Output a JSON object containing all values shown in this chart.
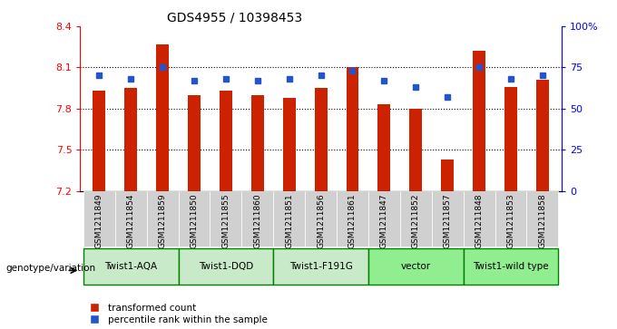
{
  "title": "GDS4955 / 10398453",
  "samples": [
    "GSM1211849",
    "GSM1211854",
    "GSM1211859",
    "GSM1211850",
    "GSM1211855",
    "GSM1211860",
    "GSM1211851",
    "GSM1211856",
    "GSM1211861",
    "GSM1211847",
    "GSM1211852",
    "GSM1211857",
    "GSM1211848",
    "GSM1211853",
    "GSM1211858"
  ],
  "bar_values": [
    7.93,
    7.95,
    8.27,
    7.9,
    7.93,
    7.9,
    7.88,
    7.95,
    8.1,
    7.83,
    7.8,
    7.43,
    8.22,
    7.96,
    8.01
  ],
  "percentile_values": [
    70,
    68,
    75,
    67,
    68,
    67,
    68,
    70,
    73,
    67,
    63,
    57,
    75,
    68,
    70
  ],
  "y_min": 7.2,
  "y_max": 8.4,
  "y_ticks": [
    7.2,
    7.5,
    7.8,
    8.1,
    8.4
  ],
  "right_y_ticks": [
    0,
    25,
    50,
    75,
    100
  ],
  "right_y_labels": [
    "0",
    "25",
    "50",
    "75",
    "100%"
  ],
  "groups": [
    {
      "label": "Twist1-AQA",
      "start": 0,
      "end": 3
    },
    {
      "label": "Twist1-DQD",
      "start": 3,
      "end": 6
    },
    {
      "label": "Twist1-F191G",
      "start": 6,
      "end": 9
    },
    {
      "label": "vector",
      "start": 9,
      "end": 12
    },
    {
      "label": "Twist1-wild type",
      "start": 12,
      "end": 15
    }
  ],
  "group_colors": [
    "#c8eac8",
    "#c8eac8",
    "#c8eac8",
    "#90ee90",
    "#90ee90"
  ],
  "bar_color": "#cc2200",
  "dot_color": "#2255cc",
  "bar_width": 0.4,
  "legend_label_bar": "transformed count",
  "legend_label_dot": "percentile rank within the sample",
  "genotype_label": "genotype/variation",
  "sample_bg_color": "#d0d0d0",
  "grid_color": "#000000",
  "group_border_color": "#008000"
}
